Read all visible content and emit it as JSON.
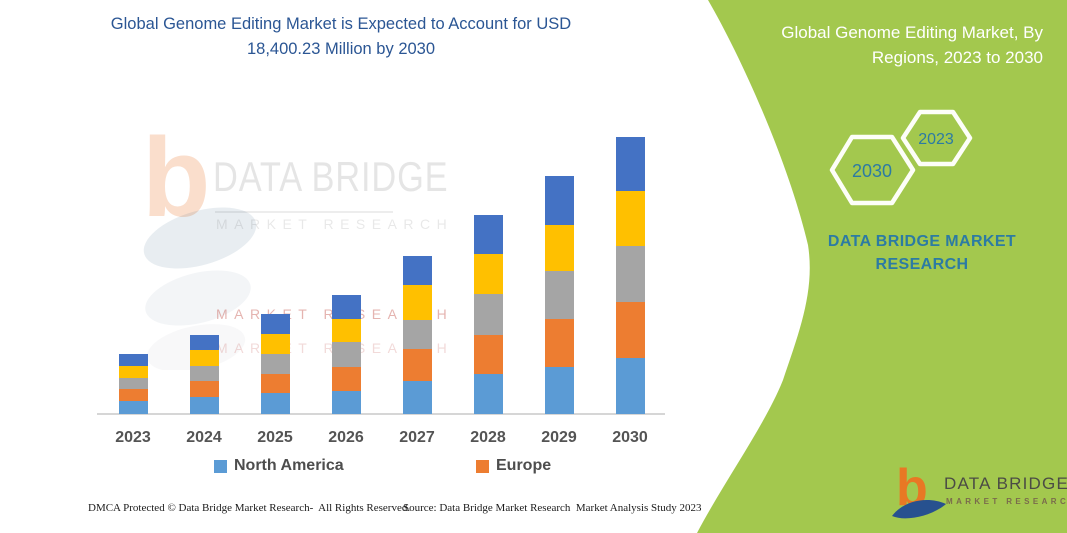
{
  "title": {
    "line1": "Global Genome Editing Market is Expected to Account for USD",
    "line2": "18,400.23 Million by 2030"
  },
  "panel": {
    "bg_color": "#A3C84E",
    "text_color": "#2C7BA3",
    "title_line1": "Global Genome Editing Market, By",
    "title_line2": "Regions, 2023 to 2030",
    "hexagons": [
      {
        "label": "2030"
      },
      {
        "label": "2023"
      }
    ],
    "brand_line1": "DATA BRIDGE MARKET",
    "brand_line2": "RESEARCH"
  },
  "watermark": {
    "b_glyph": "b",
    "brand": "DATA BRIDGE",
    "tagline": "MARKET RESEARCH",
    "tagline_red_1": "MARKET RESEARCH",
    "tagline_red_2": "MARKET RESEARCH"
  },
  "legend": [
    {
      "label": "North America",
      "color": "#5B9BD5"
    },
    {
      "label": "Europe",
      "color": "#ED7D31"
    }
  ],
  "chart_data": {
    "type": "bar",
    "stacked": true,
    "unit": "USD Million",
    "title": "Global Genome Editing Market is Expected to Account for USD 18,400.23 Million by 2030",
    "categories": [
      "2023",
      "2024",
      "2025",
      "2026",
      "2027",
      "2028",
      "2029",
      "2030"
    ],
    "series": [
      {
        "name": "North America",
        "color": "#5B9BD5",
        "values": [
          864,
          1129,
          1395,
          1548,
          2192,
          2657,
          3122,
          3720
        ]
      },
      {
        "name": "Europe",
        "color": "#ED7D31",
        "values": [
          797,
          1043,
          1282,
          1548,
          2126,
          2591,
          3189,
          3720
        ]
      },
      {
        "name": "(unlabeled gray)",
        "color": "#A5A5A5",
        "values": [
          751,
          1043,
          1329,
          1661,
          1926,
          2724,
          3189,
          3720
        ]
      },
      {
        "name": "(unlabeled yellow)",
        "color": "#FFC000",
        "values": [
          777,
          1063,
          1309,
          1548,
          2325,
          2657,
          3056,
          3654
        ]
      },
      {
        "name": "(unlabeled dark blue)",
        "color": "#4472C4",
        "values": [
          797,
          997,
          1349,
          1614,
          1927,
          2591,
          3255,
          3586
        ]
      }
    ],
    "totals": [
      3986,
      5275,
      6664,
      7919,
      10496,
      13220,
      15811,
      18400.23
    ],
    "value_basis": "2030 total anchored to USD 18,400.23 Million stated in the title; all other values estimated from bar segment heights",
    "xlabel": "",
    "ylabel": "",
    "gridlines": false,
    "legend_position": "bottom"
  },
  "footer": {
    "dmca": "DMCA Protected © Data Bridge Market Research-  All Rights Reserved.",
    "source": "Source: Data Bridge Market Research  Market Analysis Study 2023"
  },
  "logo": {
    "brand": "DATA BRIDGE",
    "tagline": "MARKET RESEARCH"
  }
}
